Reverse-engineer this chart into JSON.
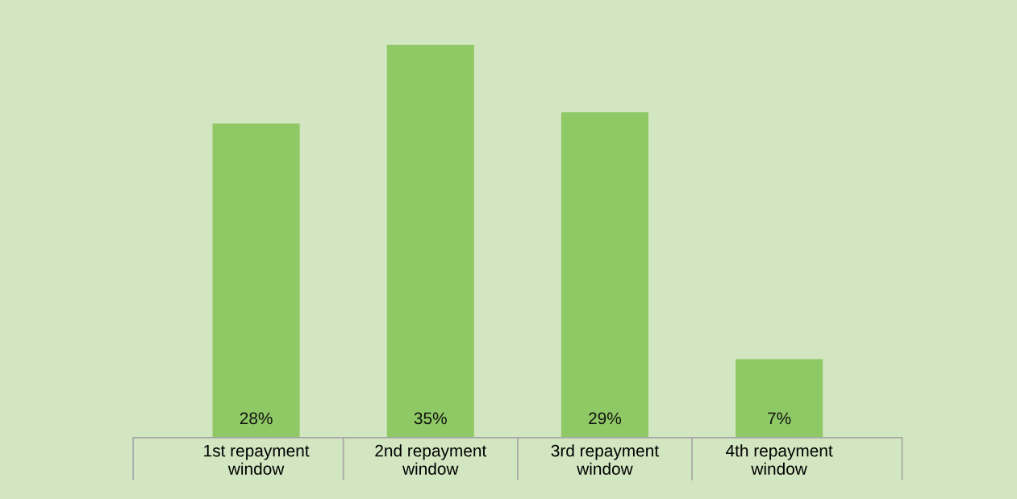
{
  "chart_data": {
    "type": "bar",
    "categories": [
      "1st repayment\nwindow",
      "2nd repayment\nwindow",
      "3rd repayment\nwindow",
      "4th repayment\nwindow"
    ],
    "values": [
      28,
      35,
      29,
      7
    ],
    "value_labels": [
      "28%",
      "35%",
      "29%",
      "7%"
    ],
    "color": "#8fc965",
    "grid": false,
    "legend": false
  }
}
